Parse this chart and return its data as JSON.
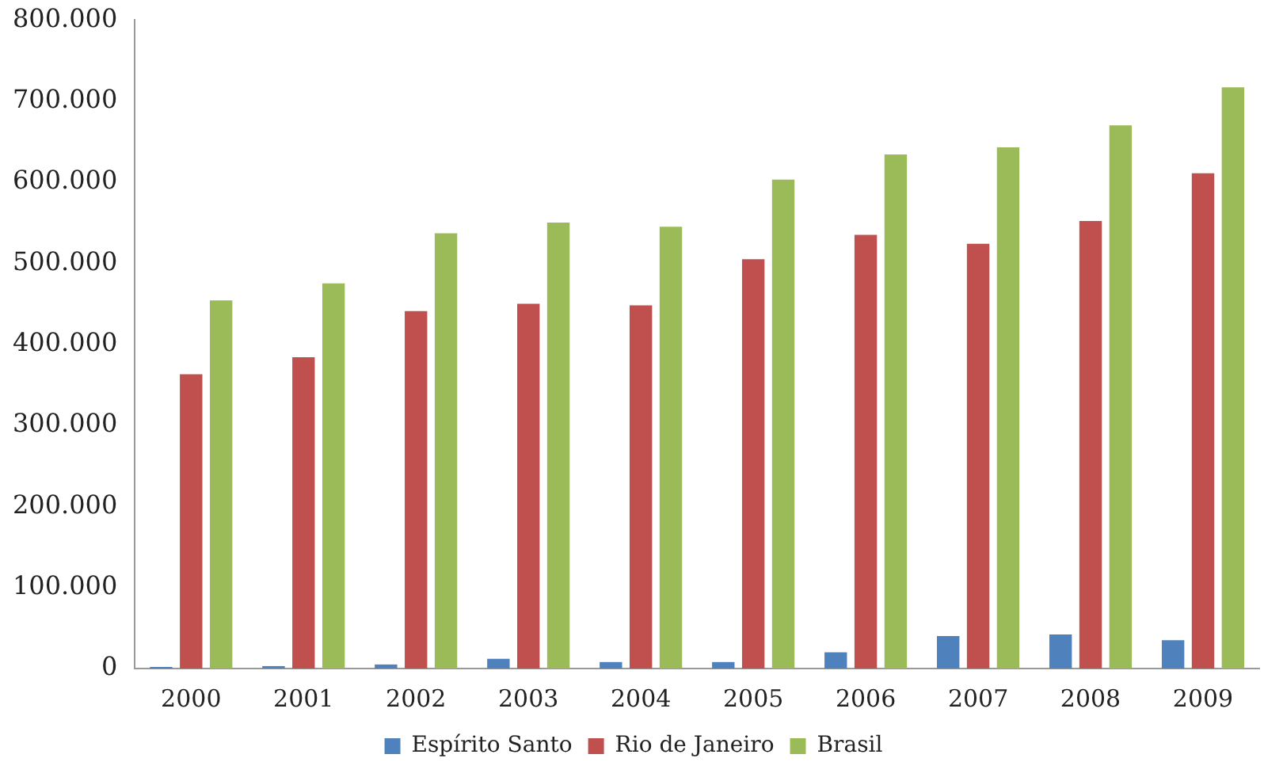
{
  "chart_data": {
    "type": "bar",
    "categories": [
      "2000",
      "2001",
      "2002",
      "2003",
      "2004",
      "2005",
      "2006",
      "2007",
      "2008",
      "2009"
    ],
    "series": [
      {
        "name": "Espírito Santo",
        "color": "#4f81bd",
        "values": [
          2000,
          3000,
          5000,
          12000,
          8000,
          8000,
          20000,
          40000,
          42000,
          35000
        ]
      },
      {
        "name": "Rio de Janeiro",
        "color": "#c0504d",
        "values": [
          363000,
          384000,
          441000,
          450000,
          448000,
          505000,
          535000,
          524000,
          552000,
          611000
        ]
      },
      {
        "name": "Brasil",
        "color": "#9bbb59",
        "values": [
          454000,
          475000,
          537000,
          550000,
          545000,
          603000,
          634000,
          643000,
          670000,
          717000
        ]
      }
    ],
    "ylim": [
      0,
      800000
    ],
    "yticks": [
      0,
      {
        "value": 100000,
        "label": "100.000"
      },
      {
        "value": 200000,
        "label": "200.000"
      },
      {
        "value": 300000,
        "label": "300.000"
      },
      {
        "value": 400000,
        "label": "400.000"
      },
      {
        "value": 500000,
        "label": "500.000"
      },
      {
        "value": 600000,
        "label": "600.000"
      },
      {
        "value": 700000,
        "label": "700.000"
      },
      {
        "value": 800000,
        "label": "800.000"
      }
    ],
    "grid": false,
    "legend": "bottom"
  }
}
